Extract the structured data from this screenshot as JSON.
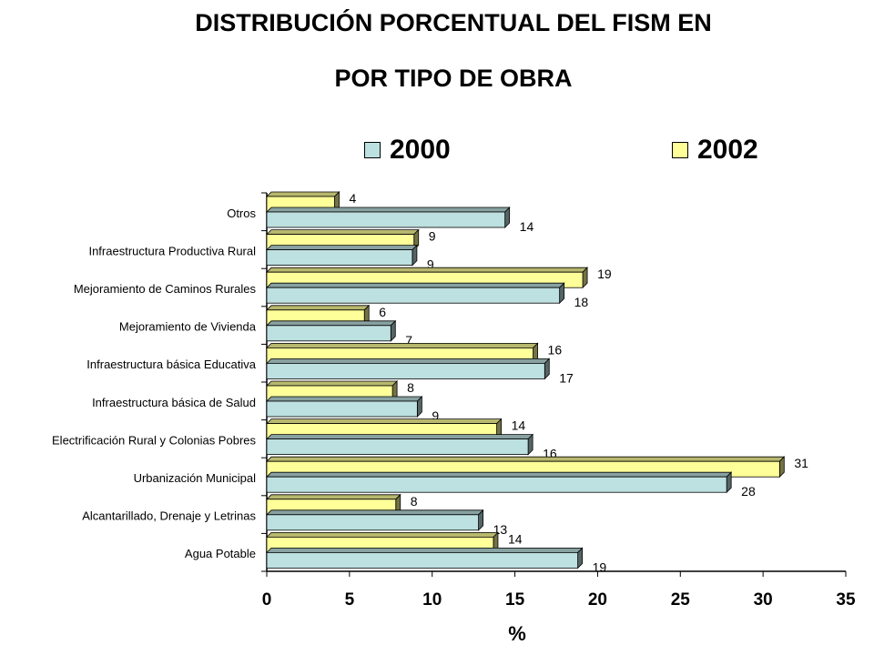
{
  "chart_data": {
    "type": "bar",
    "orientation": "horizontal",
    "title_lines": [
      "DISTRIBUCIÓN PORCENTUAL DEL FISM EN",
      "POR TIPO DE OBRA"
    ],
    "categories": [
      "Otros",
      "Infraestructura Productiva Rural",
      "Mejoramiento de Caminos Rurales",
      "Mejoramiento de Vivienda",
      "Infraestructura básica Educativa",
      "Infraestructura básica de Salud",
      "Electrificación Rural y Colonias Pobres",
      "Urbanización Municipal",
      "Alcantarillado, Drenaje y Letrinas",
      "Agua Potable"
    ],
    "series": [
      {
        "name": "2000",
        "color": "#bde0e0",
        "values": [
          14,
          9,
          18,
          7,
          17,
          9,
          16,
          28,
          13,
          19
        ],
        "plot_values": [
          14.4,
          8.8,
          17.7,
          7.5,
          16.8,
          9.1,
          15.8,
          27.8,
          12.8,
          18.8
        ]
      },
      {
        "name": "2002",
        "color": "#ffff99",
        "values": [
          4,
          9,
          19,
          6,
          16,
          8,
          14,
          31,
          8,
          14
        ],
        "plot_values": [
          4.1,
          8.9,
          19.1,
          5.9,
          16.1,
          7.6,
          13.9,
          31.0,
          7.8,
          13.7
        ]
      }
    ],
    "xlabel": "%",
    "ylabel": "",
    "xlim": [
      0,
      35
    ],
    "xticks": [
      0,
      5,
      10,
      15,
      20,
      25,
      30,
      35
    ],
    "grid": false,
    "legend_position": "top"
  }
}
